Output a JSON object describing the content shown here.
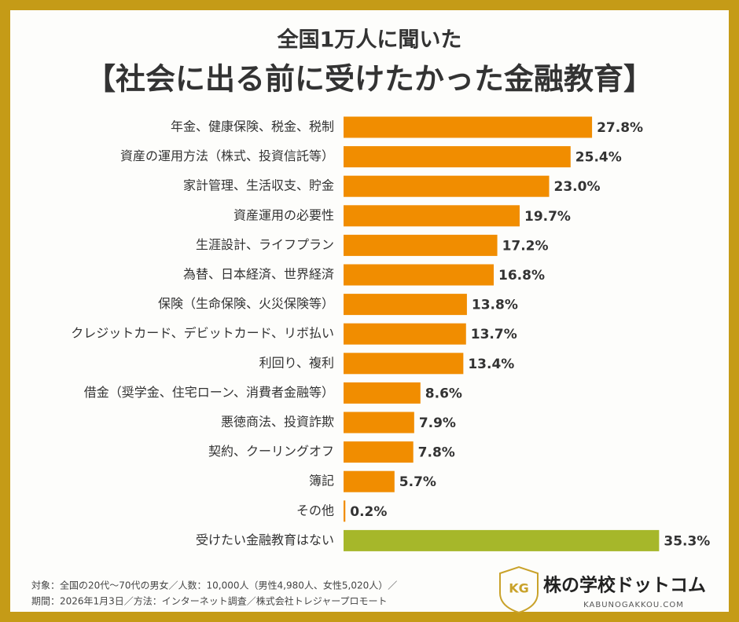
{
  "chart_data": {
    "type": "barh",
    "title": "全国1万人に聞いた",
    "subtitle": "【社会に出る前に受けたかった金融教育】",
    "categories": [
      "年金、健康保険、税金、税制",
      "資産の運用方法（株式、投資信託等）",
      "家計管理、生活収支、貯金",
      "資産運用の必要性",
      "生涯設計、ライフプラン",
      "為替、日本経済、世界経済",
      "保険（生命保険、火災保険等）",
      "クレジットカード、デビットカード、リボ払い",
      "利回り、複利",
      "借金（奨学金、住宅ローン、消費者金融等）",
      "悪徳商法、投資詐欺",
      "契約、クーリングオフ",
      "簿記",
      "その他",
      "受けたい金融教育はない"
    ],
    "values": [
      27.8,
      25.4,
      23.0,
      19.7,
      17.2,
      16.8,
      13.8,
      13.7,
      13.4,
      8.6,
      7.9,
      7.8,
      5.7,
      0.2,
      35.3
    ],
    "value_labels": [
      "27.8%",
      "25.4%",
      "23.0%",
      "19.7%",
      "17.2%",
      "16.8%",
      "13.8%",
      "13.7%",
      "13.4%",
      "8.6%",
      "7.9%",
      "7.8%",
      "5.7%",
      "0.2%",
      "35.3%"
    ],
    "colors": [
      "#f18d00",
      "#f18d00",
      "#f18d00",
      "#f18d00",
      "#f18d00",
      "#f18d00",
      "#f18d00",
      "#f18d00",
      "#f18d00",
      "#f18d00",
      "#f18d00",
      "#f18d00",
      "#f18d00",
      "#f18d00",
      "#a6b72a"
    ]
  },
  "notes": [
    "対象：全国の20代〜70代の男女／人数：10,000人（男性4,980人、女性5,020人）／",
    "期間：2026年1月3日／方法：インターネット調査／株式会社トレジャープロモート"
  ],
  "logo": {
    "mark": "KG",
    "name": "株の学校ドットコム",
    "url": "KABUNOGAKKOU.COM"
  }
}
